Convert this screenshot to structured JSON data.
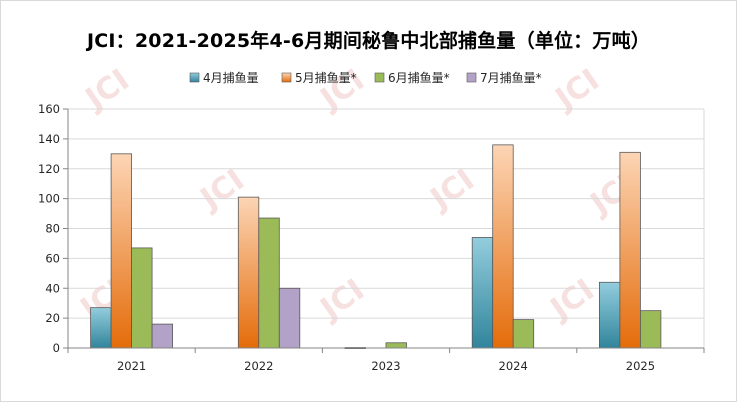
{
  "chart_data": {
    "type": "bar",
    "title": "JCI：2021-2025年4-6月期间秘鲁中北部捕鱼量（单位：万吨）",
    "categories": [
      "2021",
      "2022",
      "2023",
      "2024",
      "2025"
    ],
    "series": [
      {
        "name": "4月捕鱼量",
        "color": "#4bacc6",
        "values": [
          27,
          0,
          0.3,
          74,
          44
        ]
      },
      {
        "name": "5月捕鱼量*",
        "color": "#f79646",
        "values": [
          130,
          101,
          0,
          136,
          131
        ]
      },
      {
        "name": "6月捕鱼量*",
        "color": "#9bbb59",
        "values": [
          67,
          87,
          3.5,
          19,
          25
        ]
      },
      {
        "name": "7月捕鱼量*",
        "color": "#b3a2c7",
        "values": [
          16,
          40,
          0,
          0,
          0
        ]
      }
    ],
    "ylim": [
      0,
      160
    ],
    "yticks": [
      0,
      20,
      40,
      60,
      80,
      100,
      120,
      140,
      160
    ],
    "grid": true,
    "legend": "top",
    "watermark": "JCI"
  }
}
